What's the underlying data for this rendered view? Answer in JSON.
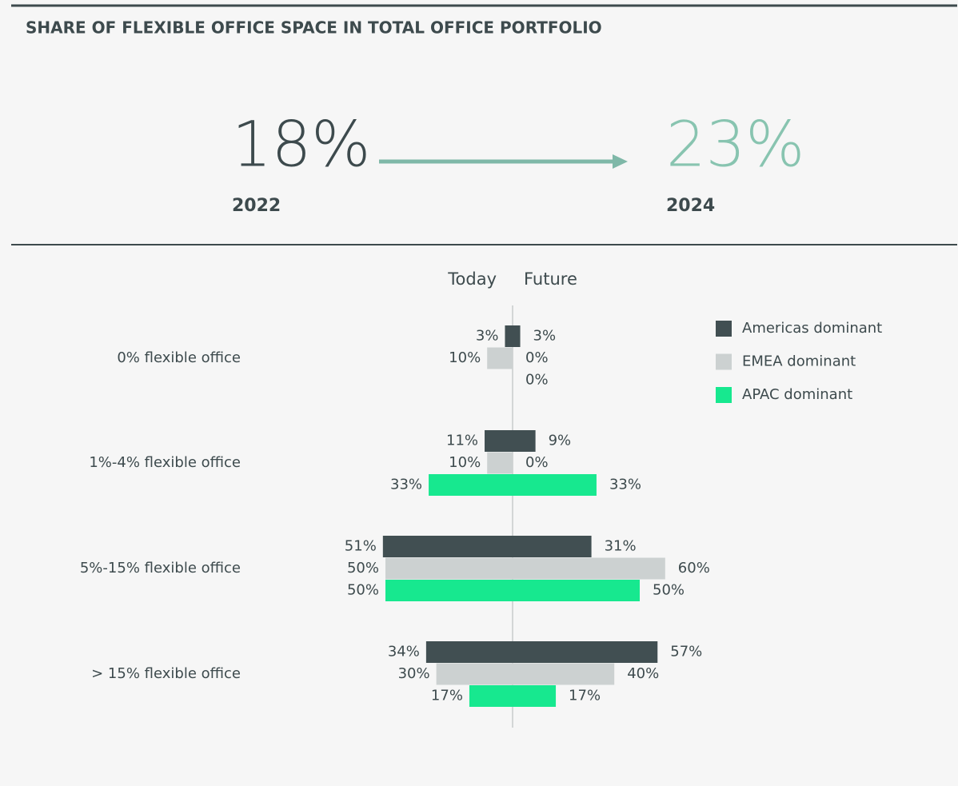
{
  "chart_data": {
    "type": "butterfly",
    "title": "SHARE OF FLEXIBLE OFFICE SPACE IN TOTAL OFFICE PORTFOLIO",
    "highlights": [
      {
        "value": 18,
        "label": "18%",
        "year": "2022"
      },
      {
        "value": 23,
        "label": "23%",
        "year": "2024"
      }
    ],
    "left_label": "Today",
    "right_label": "Future",
    "categories": [
      "0% flexible office",
      "1%-4% flexible office",
      "5%-15% flexible office",
      "> 15% flexible office"
    ],
    "series": [
      {
        "name": "Americas dominant",
        "color": "#414f52",
        "today": [
          3,
          11,
          51,
          34
        ],
        "today_labels": [
          "3%",
          "11%",
          "51%",
          "34%"
        ],
        "future": [
          3,
          9,
          31,
          57
        ],
        "future_labels": [
          "3%",
          "9%",
          "31%",
          "57%"
        ]
      },
      {
        "name": "EMEA dominant",
        "color": "#ccd1d1",
        "today": [
          10,
          10,
          50,
          30
        ],
        "today_labels": [
          "10%",
          "10%",
          "50%",
          "30%"
        ],
        "future": [
          0,
          0,
          60,
          40
        ],
        "future_labels": [
          "0%",
          "0%",
          "60%",
          "40%"
        ]
      },
      {
        "name": "APAC dominant",
        "color": "#17e88f",
        "today": [
          null,
          33,
          50,
          17
        ],
        "today_labels": [
          null,
          "33%",
          "50%",
          "17%"
        ],
        "future": [
          0,
          33,
          50,
          17
        ],
        "future_labels": [
          "0%",
          "33%",
          "50%",
          "17%"
        ]
      }
    ]
  }
}
